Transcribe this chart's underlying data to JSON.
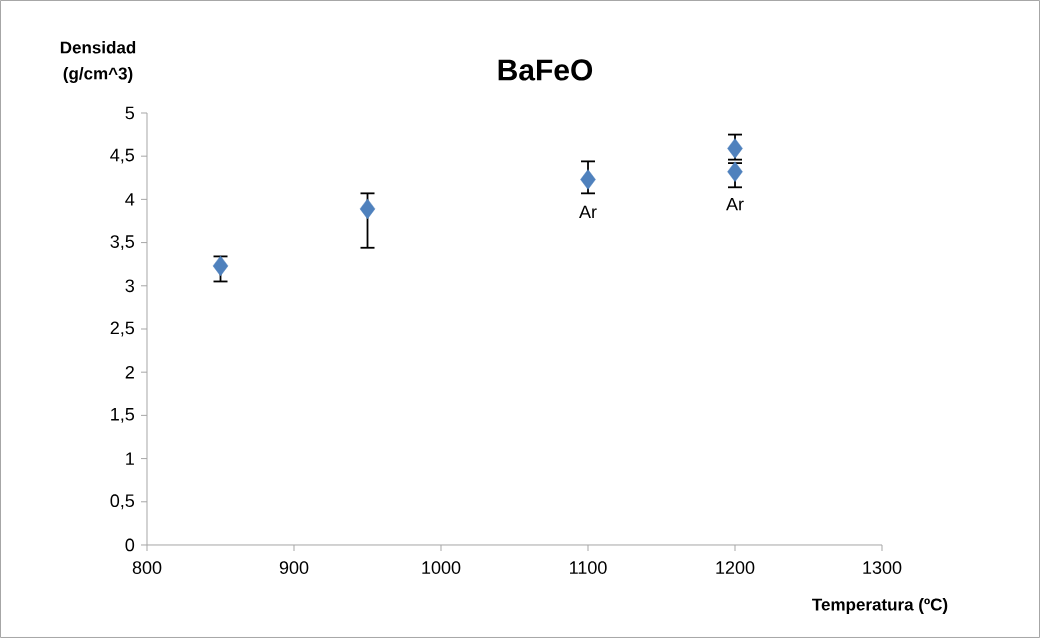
{
  "chart_data": {
    "type": "scatter",
    "title": "BaFeO",
    "xlabel": "Temperatura (ºC)",
    "ylabel": "Densidad (g/cm^3)",
    "x": [
      850,
      950,
      1100,
      1200,
      1200
    ],
    "values": [
      3.23,
      3.89,
      4.23,
      4.59,
      4.32
    ],
    "errors": [
      [
        3.05,
        3.34
      ],
      [
        3.44,
        4.07
      ],
      [
        4.07,
        4.44
      ],
      [
        4.46,
        4.75
      ],
      [
        4.14,
        4.42
      ]
    ],
    "color": "#4f81bd",
    "marker": "diamond",
    "xlim": [
      800,
      1300
    ],
    "xticks": [
      800,
      900,
      1000,
      1100,
      1200,
      1300
    ],
    "ylim": [
      0,
      5
    ],
    "yticks": [
      0,
      {
        "value": 0.5,
        "label": "0,5"
      },
      1,
      {
        "value": 1.5,
        "label": "1,5"
      },
      2,
      {
        "value": 2.5,
        "label": "2,5"
      },
      3,
      {
        "value": 3.5,
        "label": "3,5"
      },
      4,
      {
        "value": 4.5,
        "label": "4,5"
      },
      5
    ],
    "annotations": [
      {
        "text": "Ar",
        "x": 1100,
        "y": 4.23
      },
      {
        "text": "Ar",
        "x": 1200,
        "y": 4.32
      }
    ],
    "grid": false
  }
}
